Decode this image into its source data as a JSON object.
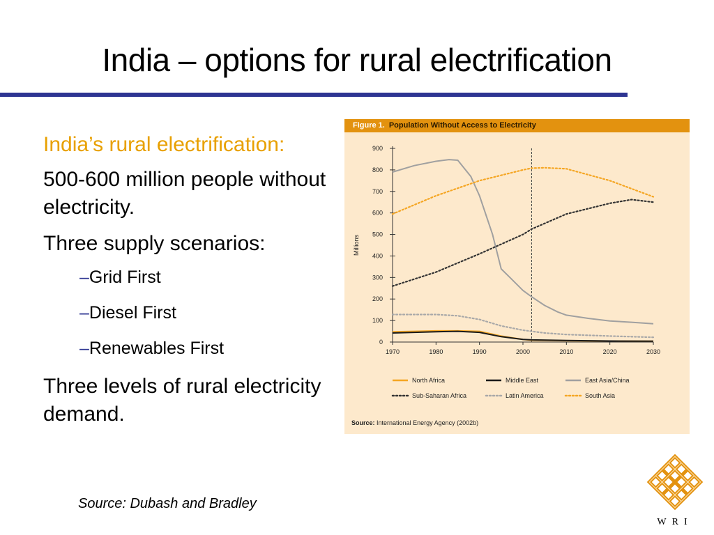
{
  "slide": {
    "title": "India – options for rural electrification"
  },
  "bullets": {
    "heading": "India’s rural electrification:",
    "para1": "500-600 million people without electricity.",
    "para2": "Three supply scenarios:",
    "sub_items": [
      {
        "dash": "–",
        "text": "Grid First"
      },
      {
        "dash": "–",
        "text": "Diesel First"
      },
      {
        "dash": "–",
        "text": "Renewables First"
      }
    ],
    "para3": "Three levels of rural electricity demand."
  },
  "source_note": "Source:  Dubash and Bradley",
  "logo": {
    "text": "WRI",
    "colors": {
      "orange": "#e3920f"
    }
  },
  "figure": {
    "label": "Figure 1.",
    "title": "Population Without Access to Electricity",
    "source_label": "Source:",
    "source_text": "International Energy Agency (2002b)"
  },
  "chart_data": {
    "type": "line",
    "title": "Population Without Access to Electricity",
    "xlabel": "",
    "ylabel": "Millions",
    "xlim": [
      1970,
      2030
    ],
    "ylim": [
      0,
      900
    ],
    "x_ticks": [
      1970,
      1980,
      1990,
      2000,
      2010,
      2020,
      2030
    ],
    "y_ticks": [
      0,
      100,
      200,
      300,
      400,
      500,
      600,
      700,
      800,
      900
    ],
    "vertical_marker_x": 2002,
    "legend_position": "bottom",
    "series": [
      {
        "name": "North Africa",
        "color": "#f5a623",
        "style": "solid",
        "points": [
          [
            1970,
            48
          ],
          [
            1975,
            50
          ],
          [
            1980,
            52
          ],
          [
            1985,
            52
          ],
          [
            1990,
            50
          ],
          [
            1995,
            28
          ],
          [
            2000,
            12
          ],
          [
            2002,
            8
          ],
          [
            2010,
            6
          ],
          [
            2020,
            5
          ],
          [
            2030,
            4
          ]
        ]
      },
      {
        "name": "Middle East",
        "color": "#1a1a1a",
        "style": "solid",
        "points": [
          [
            1970,
            42
          ],
          [
            1975,
            45
          ],
          [
            1980,
            48
          ],
          [
            1985,
            50
          ],
          [
            1990,
            45
          ],
          [
            1995,
            25
          ],
          [
            2000,
            12
          ],
          [
            2002,
            10
          ],
          [
            2010,
            7
          ],
          [
            2020,
            5
          ],
          [
            2030,
            4
          ]
        ]
      },
      {
        "name": "East Asia/China",
        "color": "#a0a0a0",
        "style": "solid",
        "points": [
          [
            1970,
            790
          ],
          [
            1975,
            820
          ],
          [
            1980,
            840
          ],
          [
            1983,
            848
          ],
          [
            1985,
            845
          ],
          [
            1988,
            770
          ],
          [
            1990,
            680
          ],
          [
            1993,
            500
          ],
          [
            1995,
            340
          ],
          [
            1997,
            300
          ],
          [
            2000,
            240
          ],
          [
            2002,
            210
          ],
          [
            2005,
            170
          ],
          [
            2008,
            140
          ],
          [
            2010,
            125
          ],
          [
            2015,
            110
          ],
          [
            2020,
            98
          ],
          [
            2025,
            92
          ],
          [
            2030,
            85
          ]
        ]
      },
      {
        "name": "Sub-Saharan Africa",
        "color": "#333333",
        "style": "dotted",
        "points": [
          [
            1970,
            260
          ],
          [
            1980,
            325
          ],
          [
            1990,
            410
          ],
          [
            2000,
            500
          ],
          [
            2002,
            525
          ],
          [
            2010,
            595
          ],
          [
            2020,
            645
          ],
          [
            2025,
            662
          ],
          [
            2030,
            650
          ]
        ]
      },
      {
        "name": "Latin America",
        "color": "#a8a8a8",
        "style": "dotted",
        "points": [
          [
            1970,
            128
          ],
          [
            1980,
            128
          ],
          [
            1985,
            122
          ],
          [
            1990,
            105
          ],
          [
            1995,
            75
          ],
          [
            2000,
            55
          ],
          [
            2005,
            42
          ],
          [
            2010,
            35
          ],
          [
            2020,
            28
          ],
          [
            2030,
            22
          ]
        ]
      },
      {
        "name": "South Asia",
        "color": "#f5a623",
        "style": "dotted",
        "points": [
          [
            1970,
            595
          ],
          [
            1980,
            680
          ],
          [
            1990,
            750
          ],
          [
            2000,
            800
          ],
          [
            2002,
            808
          ],
          [
            2005,
            810
          ],
          [
            2010,
            805
          ],
          [
            2020,
            750
          ],
          [
            2030,
            675
          ]
        ]
      }
    ]
  }
}
